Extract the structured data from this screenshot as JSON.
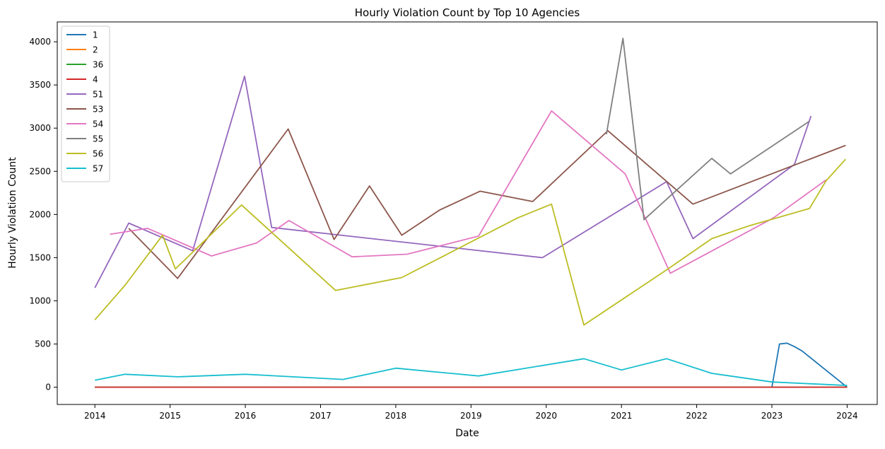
{
  "chart_data": {
    "type": "line",
    "title": "Hourly Violation Count by Top 10 Agencies",
    "xlabel": "Date",
    "ylabel": "Hourly Violation Count",
    "x_ticks": [
      "2014",
      "2015",
      "2016",
      "2017",
      "2018",
      "2019",
      "2020",
      "2021",
      "2022",
      "2023",
      "2024"
    ],
    "y_ticks": [
      "0",
      "500",
      "1000",
      "1500",
      "2000",
      "2500",
      "3000",
      "3500",
      "4000"
    ],
    "xlim": [
      2013.5,
      2024.4
    ],
    "ylim": [
      -200,
      4230
    ],
    "legend_position": "top-left",
    "grid": false,
    "series": [
      {
        "name": "1",
        "color": "#1f77b4",
        "x": [
          2014.0,
          2023.0,
          2023.1,
          2023.2,
          2023.3,
          2023.4,
          2024.0
        ],
        "y": [
          0,
          0,
          500,
          510,
          470,
          420,
          0
        ]
      },
      {
        "name": "2",
        "color": "#ff7f0e",
        "x": [
          2014.0,
          2024.0
        ],
        "y": [
          0,
          0
        ]
      },
      {
        "name": "36",
        "color": "#2ca02c",
        "x": [
          2014.0,
          2024.0
        ],
        "y": [
          0,
          0
        ]
      },
      {
        "name": "4",
        "color": "#d62728",
        "x": [
          2014.0,
          2024.0
        ],
        "y": [
          0,
          0
        ]
      },
      {
        "name": "51",
        "color": "#9467bd",
        "x": [
          2014.0,
          2014.45,
          2015.3,
          2015.99,
          2016.35,
          2019.95,
          2021.6,
          2021.95,
          2023.3,
          2023.52
        ],
        "y": [
          1150,
          1900,
          1580,
          3600,
          1850,
          1500,
          2380,
          1720,
          2580,
          3140
        ]
      },
      {
        "name": "53",
        "color": "#8c564b",
        "x": [
          2014.45,
          2015.1,
          2016.57,
          2017.18,
          2017.65,
          2018.08,
          2018.58,
          2019.12,
          2019.82,
          2020.82,
          2021.95,
          2023.98
        ],
        "y": [
          1840,
          1260,
          2990,
          1710,
          2330,
          1760,
          2050,
          2270,
          2150,
          2970,
          2120,
          2800
        ]
      },
      {
        "name": "54",
        "color": "#e377c2",
        "x": [
          2014.2,
          2014.7,
          2015.55,
          2016.15,
          2016.58,
          2017.42,
          2018.15,
          2019.1,
          2020.07,
          2021.05,
          2021.65,
          2023.02,
          2023.72
        ],
        "y": [
          1770,
          1840,
          1520,
          1670,
          1930,
          1510,
          1540,
          1750,
          3200,
          2470,
          1320,
          1960,
          2400
        ]
      },
      {
        "name": "55",
        "color": "#7f7f7f",
        "x": [
          2020.8,
          2021.02,
          2021.3,
          2022.2,
          2022.45,
          2023.5
        ],
        "y": [
          2930,
          4040,
          1940,
          2650,
          2470,
          3080
        ]
      },
      {
        "name": "56",
        "color": "#bcbd22",
        "x": [
          2014.0,
          2014.4,
          2014.9,
          2015.07,
          2015.95,
          2017.2,
          2018.08,
          2019.62,
          2020.07,
          2020.5,
          2021.62,
          2022.2,
          2022.7,
          2023.5,
          2023.72,
          2023.98
        ],
        "y": [
          780,
          1180,
          1760,
          1370,
          2110,
          1120,
          1270,
          1960,
          2120,
          720,
          1370,
          1720,
          1870,
          2070,
          2390,
          2640
        ]
      },
      {
        "name": "57",
        "color": "#17becf",
        "x": [
          2014.0,
          2014.4,
          2015.1,
          2016.0,
          2017.3,
          2018.0,
          2019.1,
          2020.5,
          2021.0,
          2021.6,
          2022.2,
          2023.0,
          2024.0
        ],
        "y": [
          80,
          150,
          120,
          150,
          90,
          220,
          130,
          330,
          200,
          330,
          160,
          60,
          20
        ]
      }
    ]
  }
}
